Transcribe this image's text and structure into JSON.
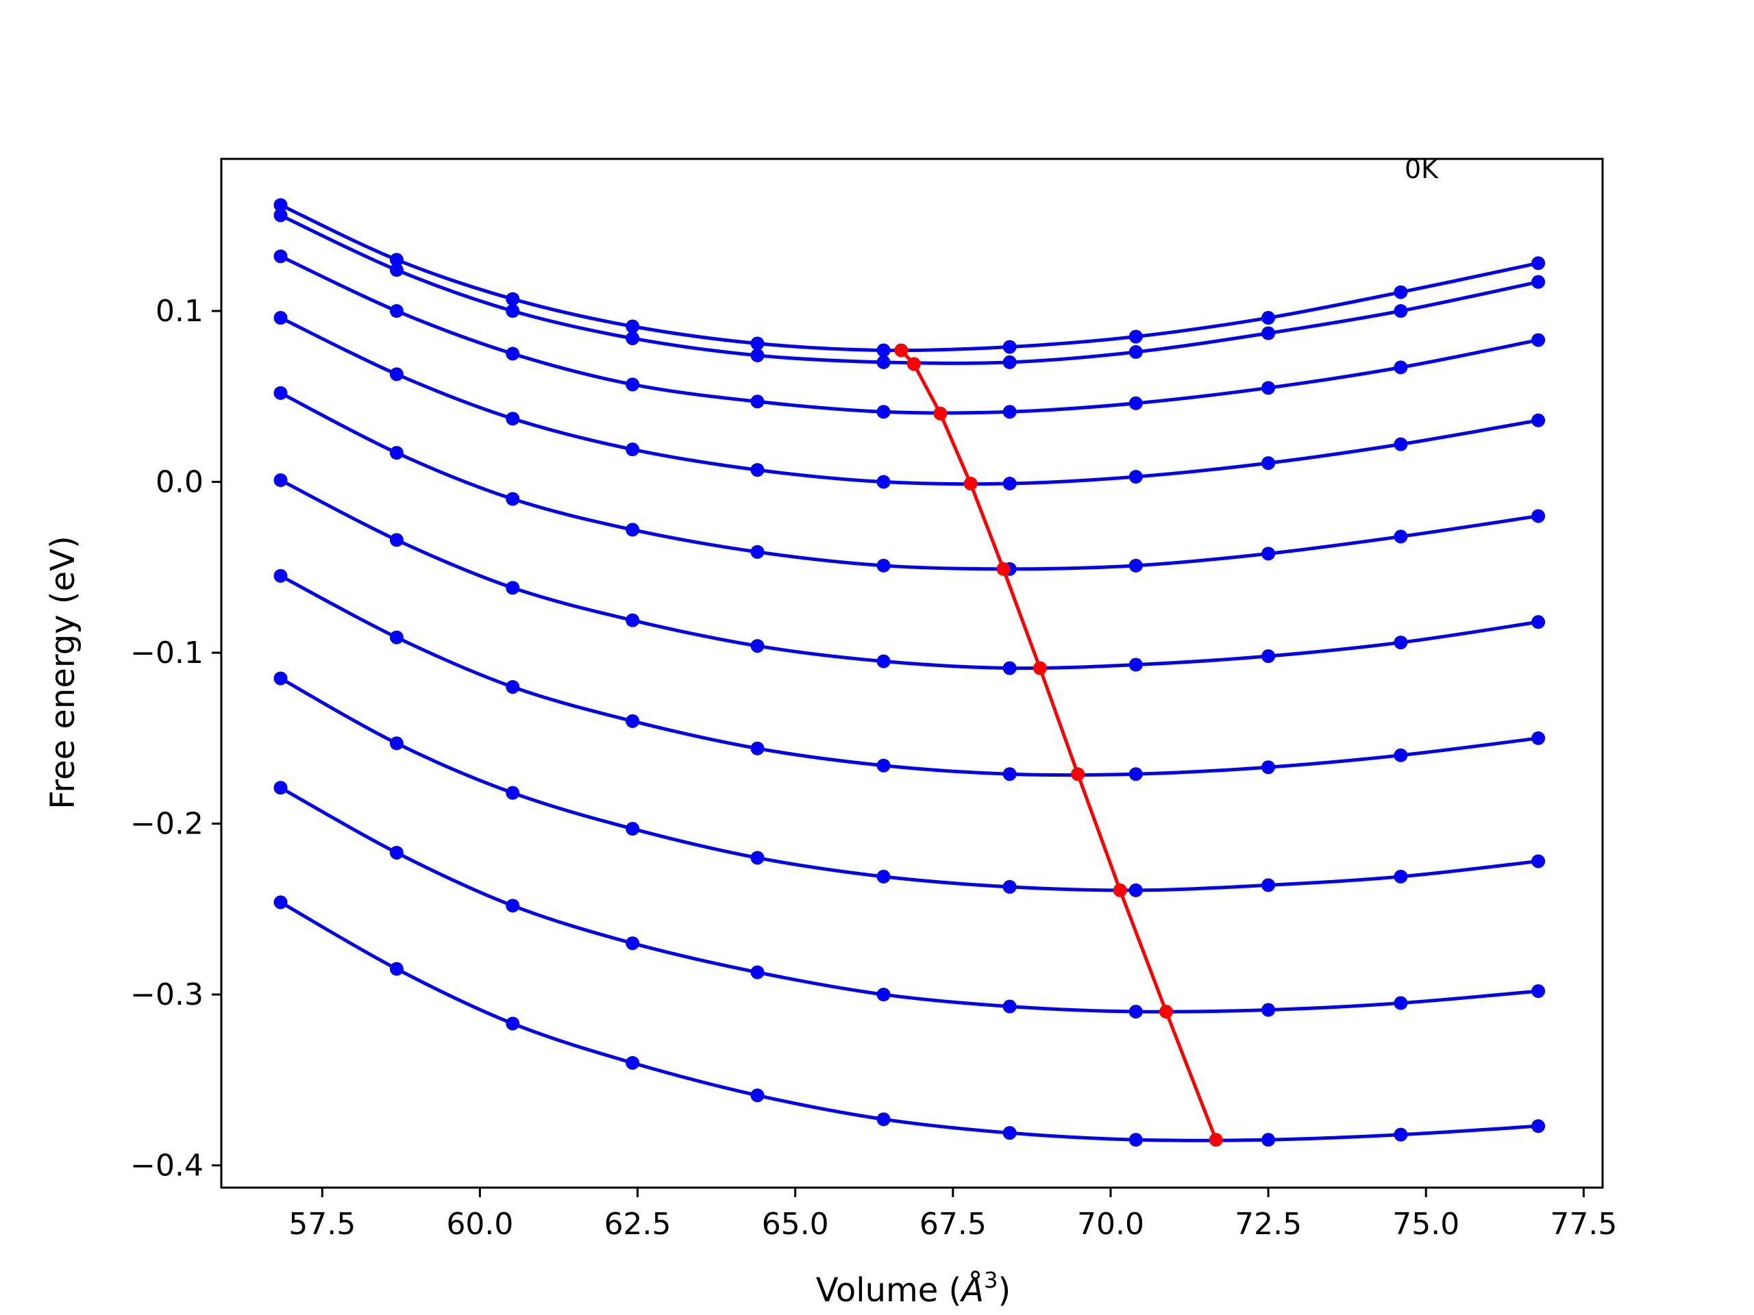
{
  "chart_data": {
    "type": "line",
    "xlabel": "Volume (Å³)",
    "xlabel_main": "Volume (",
    "xlabel_unit": "Å",
    "xlabel_sup": "3",
    "xlabel_close": ")",
    "ylabel": "Free energy (eV)",
    "annotation": "0K",
    "xlim": [
      55.9,
      77.8
    ],
    "ylim": [
      -0.413,
      0.189
    ],
    "xticks": [
      57.5,
      60.0,
      62.5,
      65.0,
      67.5,
      70.0,
      72.5,
      75.0,
      77.5
    ],
    "xtick_labels": [
      "57.5",
      "60.0",
      "62.5",
      "65.0",
      "67.5",
      "70.0",
      "72.5",
      "75.0",
      "77.5"
    ],
    "yticks": [
      0.1,
      0.0,
      -0.1,
      -0.2,
      -0.3,
      -0.4
    ],
    "ytick_labels": [
      "0.1",
      "0.0",
      "−0.1",
      "−0.2",
      "−0.3",
      "−0.4"
    ],
    "x": [
      56.84,
      58.68,
      60.52,
      62.42,
      64.4,
      66.4,
      68.4,
      70.4,
      72.5,
      74.6,
      76.78
    ],
    "series_color": "#0000ff",
    "min_line_color": "#ff0000",
    "series": [
      {
        "values": [
          0.162,
          0.13,
          0.107,
          0.091,
          0.081,
          0.077,
          0.079,
          0.085,
          0.096,
          0.111,
          0.128
        ]
      },
      {
        "values": [
          0.156,
          0.124,
          0.1,
          0.084,
          0.074,
          0.07,
          0.07,
          0.076,
          0.087,
          0.1,
          0.117
        ]
      },
      {
        "values": [
          0.132,
          0.1,
          0.075,
          0.057,
          0.047,
          0.041,
          0.041,
          0.046,
          0.055,
          0.067,
          0.083
        ]
      },
      {
        "values": [
          0.096,
          0.063,
          0.037,
          0.019,
          0.007,
          0.0,
          -0.001,
          0.003,
          0.011,
          0.022,
          0.036
        ]
      },
      {
        "values": [
          0.052,
          0.017,
          -0.01,
          -0.028,
          -0.041,
          -0.049,
          -0.051,
          -0.049,
          -0.042,
          -0.032,
          -0.02
        ]
      },
      {
        "values": [
          0.001,
          -0.034,
          -0.062,
          -0.081,
          -0.096,
          -0.105,
          -0.109,
          -0.107,
          -0.102,
          -0.094,
          -0.082
        ]
      },
      {
        "values": [
          -0.055,
          -0.091,
          -0.12,
          -0.14,
          -0.156,
          -0.166,
          -0.171,
          -0.171,
          -0.167,
          -0.16,
          -0.15
        ]
      },
      {
        "values": [
          -0.115,
          -0.153,
          -0.182,
          -0.203,
          -0.22,
          -0.231,
          -0.237,
          -0.239,
          -0.236,
          -0.231,
          -0.222
        ]
      },
      {
        "values": [
          -0.179,
          -0.217,
          -0.248,
          -0.27,
          -0.287,
          -0.3,
          -0.307,
          -0.31,
          -0.309,
          -0.305,
          -0.298
        ]
      },
      {
        "values": [
          -0.246,
          -0.285,
          -0.317,
          -0.34,
          -0.359,
          -0.373,
          -0.381,
          -0.385,
          -0.385,
          -0.382,
          -0.377
        ]
      }
    ],
    "minima": {
      "x": [
        66.68,
        66.88,
        67.3,
        67.78,
        68.3,
        68.88,
        69.48,
        70.15,
        70.88,
        71.67
      ],
      "y": [
        0.077,
        0.069,
        0.04,
        -0.001,
        -0.051,
        -0.109,
        -0.171,
        -0.239,
        -0.31,
        -0.385
      ]
    }
  }
}
